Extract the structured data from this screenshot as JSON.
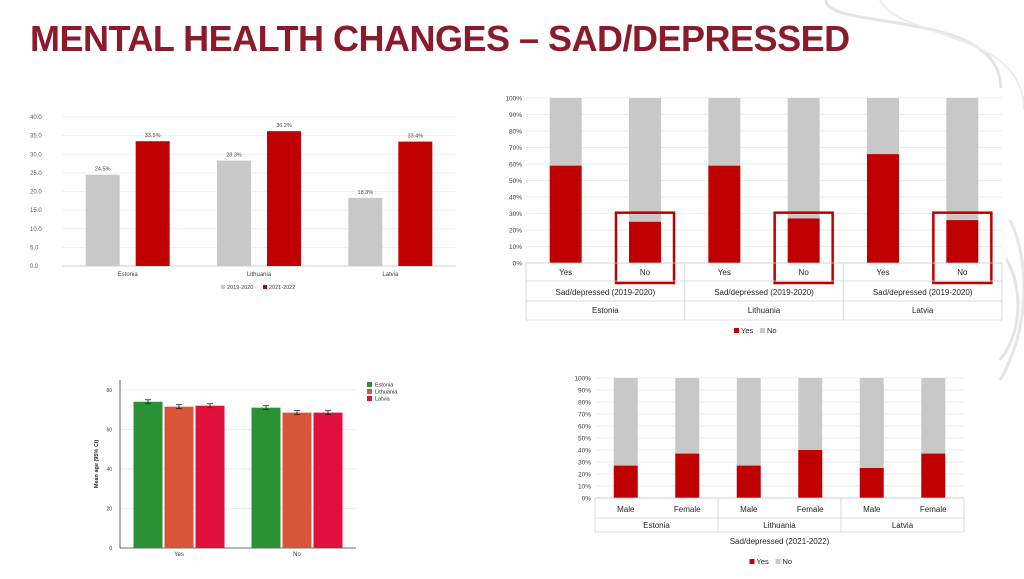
{
  "slide": {
    "title": "MENTAL HEALTH CHANGES – SAD/DEPRESSED"
  },
  "colors": {
    "red": "#c00000",
    "gray": "#c8c8c8",
    "title": "#8b1a2b",
    "green": "#2a9134",
    "orange": "#d9553a",
    "crimson": "#e0103c"
  },
  "chart_data": [
    {
      "type": "bar",
      "categories": [
        "Estonia",
        "Lithuania",
        "Latvia"
      ],
      "series": [
        {
          "name": "2019-2020",
          "values": [
            24.5,
            28.3,
            18.3
          ],
          "labels": [
            "24.5%",
            "28.3%",
            "18.3%"
          ]
        },
        {
          "name": "2021-2022",
          "values": [
            33.5,
            36.2,
            33.4
          ],
          "labels": [
            "33.5%",
            "36.2%",
            "33.4%"
          ]
        }
      ],
      "ylim": [
        0,
        40
      ],
      "yticks": [
        "0.0",
        "5.0",
        "10.0",
        "15.0",
        "20.0",
        "25.0",
        "30.0",
        "35.0",
        "40.0"
      ],
      "legend": "bottom"
    },
    {
      "type": "bar",
      "stacked": true,
      "categories": [
        "Yes",
        "No",
        "Yes",
        "No",
        "Yes",
        "No"
      ],
      "group_label": "Sad/depressed (2019-2020)",
      "countries": [
        "Estonia",
        "Lithuania",
        "Latvia"
      ],
      "series": [
        {
          "name": "Yes",
          "values": [
            59,
            25,
            59,
            27,
            66,
            26
          ]
        },
        {
          "name": "No",
          "values": [
            41,
            75,
            41,
            73,
            34,
            74
          ]
        }
      ],
      "ylim": [
        0,
        100
      ],
      "yticks": [
        "0%",
        "10%",
        "20%",
        "30%",
        "40%",
        "50%",
        "60%",
        "70%",
        "80%",
        "90%",
        "100%"
      ],
      "highlighted": [
        "No",
        "No",
        "No"
      ],
      "legend": "bottom"
    },
    {
      "type": "bar",
      "categories": [
        "Yes",
        "No"
      ],
      "series": [
        {
          "name": "Estonia",
          "values": [
            74,
            71
          ]
        },
        {
          "name": "Lithuania",
          "values": [
            71.5,
            68.5
          ]
        },
        {
          "name": "Latvia",
          "values": [
            72,
            68.5
          ]
        }
      ],
      "ylabel": "Mean age (95% CI)",
      "ylim": [
        0,
        85
      ],
      "yticks": [
        "0",
        "20",
        "40",
        "60",
        "80"
      ],
      "error_bars": true,
      "legend": "top-right"
    },
    {
      "type": "bar",
      "stacked": true,
      "categories": [
        "Male",
        "Female",
        "Male",
        "Female",
        "Male",
        "Female"
      ],
      "countries": [
        "Estonia",
        "Lithuania",
        "Latvia"
      ],
      "xlabel": "Sad/depressed (2021-2022)",
      "series": [
        {
          "name": "Yes",
          "values": [
            27,
            37,
            27,
            40,
            25,
            37
          ]
        },
        {
          "name": "No",
          "values": [
            73,
            63,
            73,
            60,
            75,
            63
          ]
        }
      ],
      "ylim": [
        0,
        100
      ],
      "yticks": [
        "0%",
        "10%",
        "20%",
        "30%",
        "40%",
        "50%",
        "60%",
        "70%",
        "80%",
        "90%",
        "100%"
      ],
      "legend": "bottom"
    }
  ]
}
